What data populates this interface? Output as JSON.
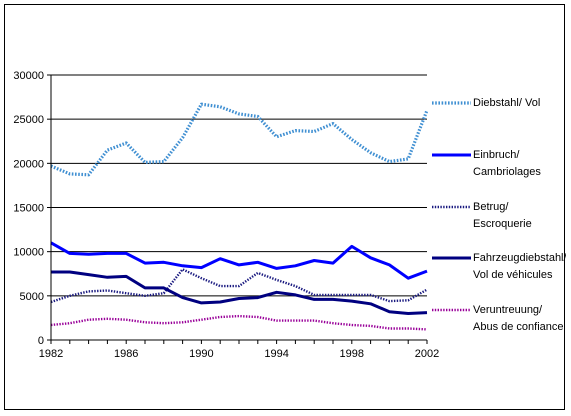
{
  "chart_data": {
    "type": "line",
    "title": "",
    "xlabel": "",
    "ylabel": "",
    "ylim": [
      0,
      30000
    ],
    "yticks": [
      0,
      5000,
      10000,
      15000,
      20000,
      25000,
      30000
    ],
    "ytick_labels": [
      "0",
      "5000",
      "10000",
      "15000",
      "20000",
      "25000",
      "30000"
    ],
    "xlim": [
      1982,
      2002
    ],
    "xticks": [
      1982,
      1986,
      1990,
      1994,
      1998,
      2002
    ],
    "xtick_labels": [
      "1982",
      "1986",
      "1990",
      "1994",
      "1998",
      "2002"
    ],
    "grid": "horizontal",
    "legend_position": "right",
    "x": [
      1982,
      1983,
      1984,
      1985,
      1986,
      1987,
      1988,
      1989,
      1990,
      1991,
      1992,
      1993,
      1994,
      1995,
      1996,
      1997,
      1998,
      1999,
      2000,
      2001,
      2002
    ],
    "series": [
      {
        "name": "Diebstahl/ Vol",
        "legend_lines": [
          "Diebstahl/ Vol"
        ],
        "color": "#3f8fd2",
        "style": "dotted-thick",
        "values": [
          19700,
          18800,
          18700,
          21500,
          22300,
          20100,
          20200,
          22900,
          26700,
          26400,
          25600,
          25300,
          23000,
          23700,
          23600,
          24500,
          22700,
          21200,
          20200,
          20500,
          26000
        ]
      },
      {
        "name": "Einbruch/ Cambriolages",
        "legend_lines": [
          "Einbruch/",
          "Cambriolages"
        ],
        "color": "#0000ff",
        "style": "solid",
        "values": [
          11000,
          9800,
          9700,
          9800,
          9800,
          8700,
          8800,
          8400,
          8200,
          9200,
          8500,
          8800,
          8100,
          8400,
          9000,
          8700,
          10600,
          9300,
          8500,
          7000,
          7800
        ]
      },
      {
        "name": "Betrug/ Escroquerie",
        "legend_lines": [
          "Betrug/",
          "Escroquerie"
        ],
        "color": "#1a1a80",
        "style": "dotted",
        "values": [
          4300,
          5000,
          5500,
          5600,
          5300,
          5000,
          5300,
          8000,
          7000,
          6100,
          6100,
          7600,
          6800,
          6100,
          5100,
          5100,
          5100,
          5100,
          4400,
          4500,
          5700
        ]
      },
      {
        "name": "Fahrzeugdiebstahl/ Vol de véhicules",
        "legend_lines": [
          "Fahrzeugdiebstahl/",
          "Vol de véhicules"
        ],
        "color": "#000080",
        "style": "solid",
        "values": [
          7700,
          7700,
          7400,
          7100,
          7200,
          5900,
          5900,
          4800,
          4200,
          4300,
          4700,
          4800,
          5400,
          5100,
          4600,
          4600,
          4400,
          4100,
          3200,
          3000,
          3100
        ]
      },
      {
        "name": "Veruntreuung/ Abus de confiance",
        "legend_lines": [
          "Veruntreuung/",
          "Abus de confiance"
        ],
        "color": "#990099",
        "style": "dotted",
        "values": [
          1700,
          1900,
          2300,
          2400,
          2300,
          2000,
          1900,
          2000,
          2300,
          2600,
          2700,
          2600,
          2200,
          2200,
          2200,
          1900,
          1700,
          1600,
          1300,
          1300,
          1200
        ]
      }
    ]
  }
}
